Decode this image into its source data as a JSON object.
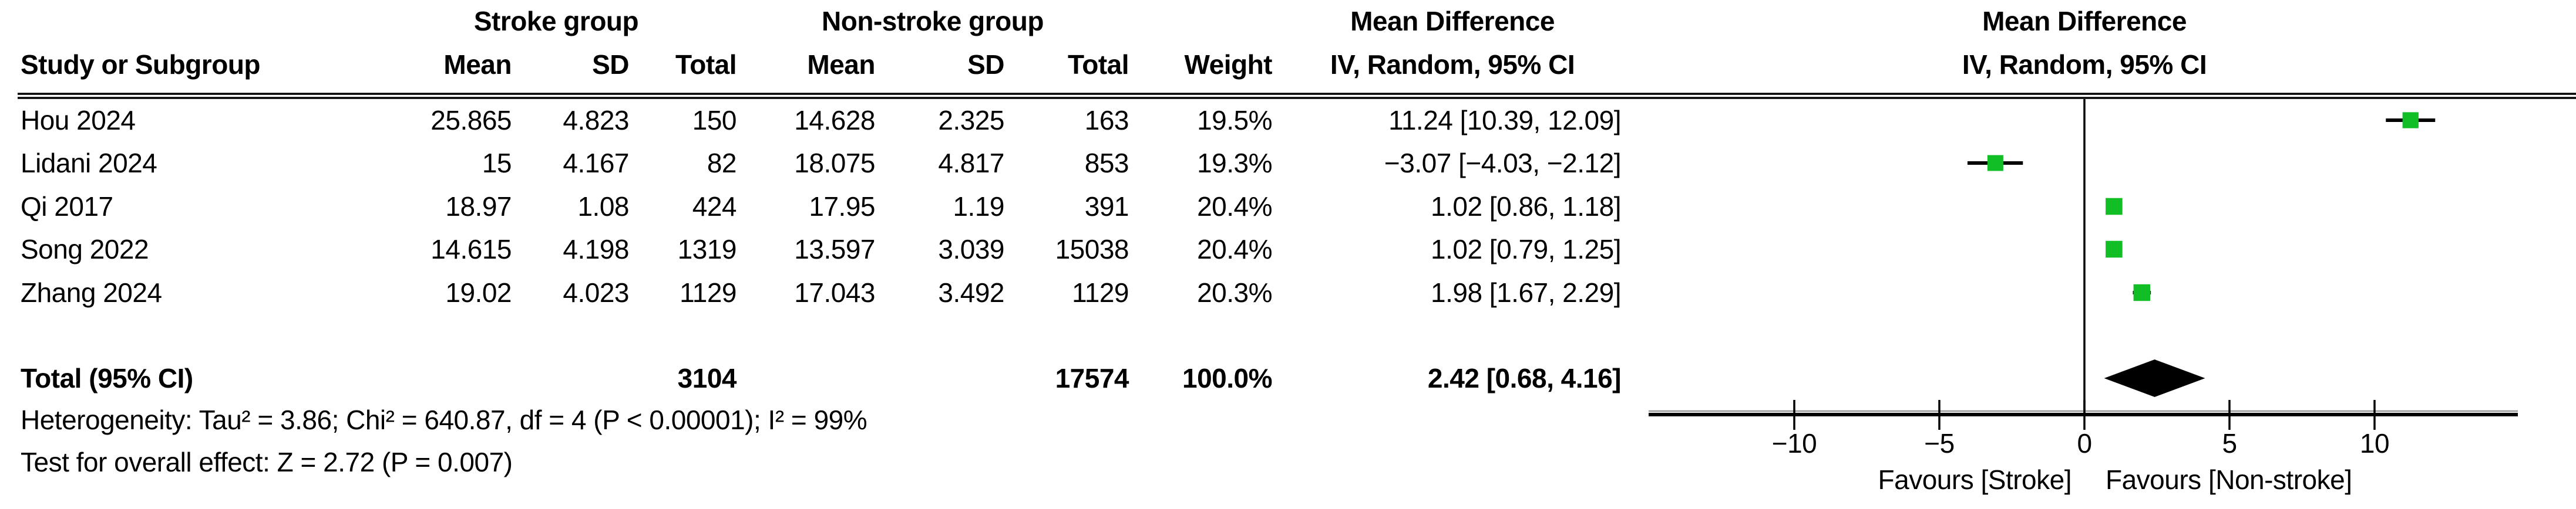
{
  "table": {
    "group_headers": {
      "stroke": "Stroke group",
      "non_stroke": "Non-stroke group",
      "md_table": "Mean Difference",
      "md_plot": "Mean Difference"
    },
    "col_headers": {
      "study": "Study or Subgroup",
      "mean1": "Mean",
      "sd1": "SD",
      "total1": "Total",
      "mean2": "Mean",
      "sd2": "SD",
      "total2": "Total",
      "weight": "Weight",
      "ci": "IV, Random, 95% CI",
      "ci_plot": "IV, Random, 95% CI"
    },
    "rows": [
      {
        "study": "Hou 2024",
        "mean1": "25.865",
        "sd1": "4.823",
        "total1": "150",
        "mean2": "14.628",
        "sd2": "2.325",
        "total2": "163",
        "weight": "19.5%",
        "ci": "11.24 [10.39, 12.09]"
      },
      {
        "study": "Lidani 2024",
        "mean1": "15",
        "sd1": "4.167",
        "total1": "82",
        "mean2": "18.075",
        "sd2": "4.817",
        "total2": "853",
        "weight": "19.3%",
        "ci": "−3.07 [−4.03, −2.12]"
      },
      {
        "study": "Qi 2017",
        "mean1": "18.97",
        "sd1": "1.08",
        "total1": "424",
        "mean2": "17.95",
        "sd2": "1.19",
        "total2": "391",
        "weight": "20.4%",
        "ci": "1.02 [0.86, 1.18]"
      },
      {
        "study": "Song 2022",
        "mean1": "14.615",
        "sd1": "4.198",
        "total1": "1319",
        "mean2": "13.597",
        "sd2": "3.039",
        "total2": "15038",
        "weight": "20.4%",
        "ci": "1.02 [0.79, 1.25]"
      },
      {
        "study": "Zhang 2024",
        "mean1": "19.02",
        "sd1": "4.023",
        "total1": "1129",
        "mean2": "17.043",
        "sd2": "3.492",
        "total2": "1129",
        "weight": "20.3%",
        "ci": "1.98 [1.67, 2.29]"
      }
    ],
    "total_row": {
      "label": "Total (95% CI)",
      "total1": "3104",
      "total2": "17574",
      "weight": "100.0%",
      "ci": "2.42 [0.68, 4.16]"
    },
    "footer": {
      "heterogeneity": "Heterogeneity: Tau² = 3.86; Chi² = 640.87, df = 4 (P < 0.00001); I² = 99%",
      "overall_effect": "Test for overall effect: Z = 2.72 (P = 0.007)"
    }
  },
  "chart_data": {
    "type": "forest",
    "title": "Mean Difference",
    "subtitle": "IV, Random, 95% CI",
    "x_ticks": [
      -10,
      -5,
      0,
      5,
      10
    ],
    "x_range": [
      -15,
      15
    ],
    "zero_line": 0,
    "favours_left": "Favours [Stroke]",
    "favours_right": "Favours [Non-stroke]",
    "studies": [
      {
        "name": "Hou 2024",
        "md": 11.24,
        "ci_low": 10.39,
        "ci_high": 12.09,
        "weight": 19.5
      },
      {
        "name": "Lidani 2024",
        "md": -3.07,
        "ci_low": -4.03,
        "ci_high": -2.12,
        "weight": 19.3
      },
      {
        "name": "Qi 2017",
        "md": 1.02,
        "ci_low": 0.86,
        "ci_high": 1.18,
        "weight": 20.4
      },
      {
        "name": "Song 2022",
        "md": 1.02,
        "ci_low": 0.79,
        "ci_high": 1.25,
        "weight": 20.4
      },
      {
        "name": "Zhang 2024",
        "md": 1.98,
        "ci_low": 1.67,
        "ci_high": 2.29,
        "weight": 20.3
      }
    ],
    "total": {
      "md": 2.42,
      "ci_low": 0.68,
      "ci_high": 4.16
    },
    "marker_color": "#12BE26",
    "diamond_color": "#000000",
    "line_color": "#000000"
  }
}
